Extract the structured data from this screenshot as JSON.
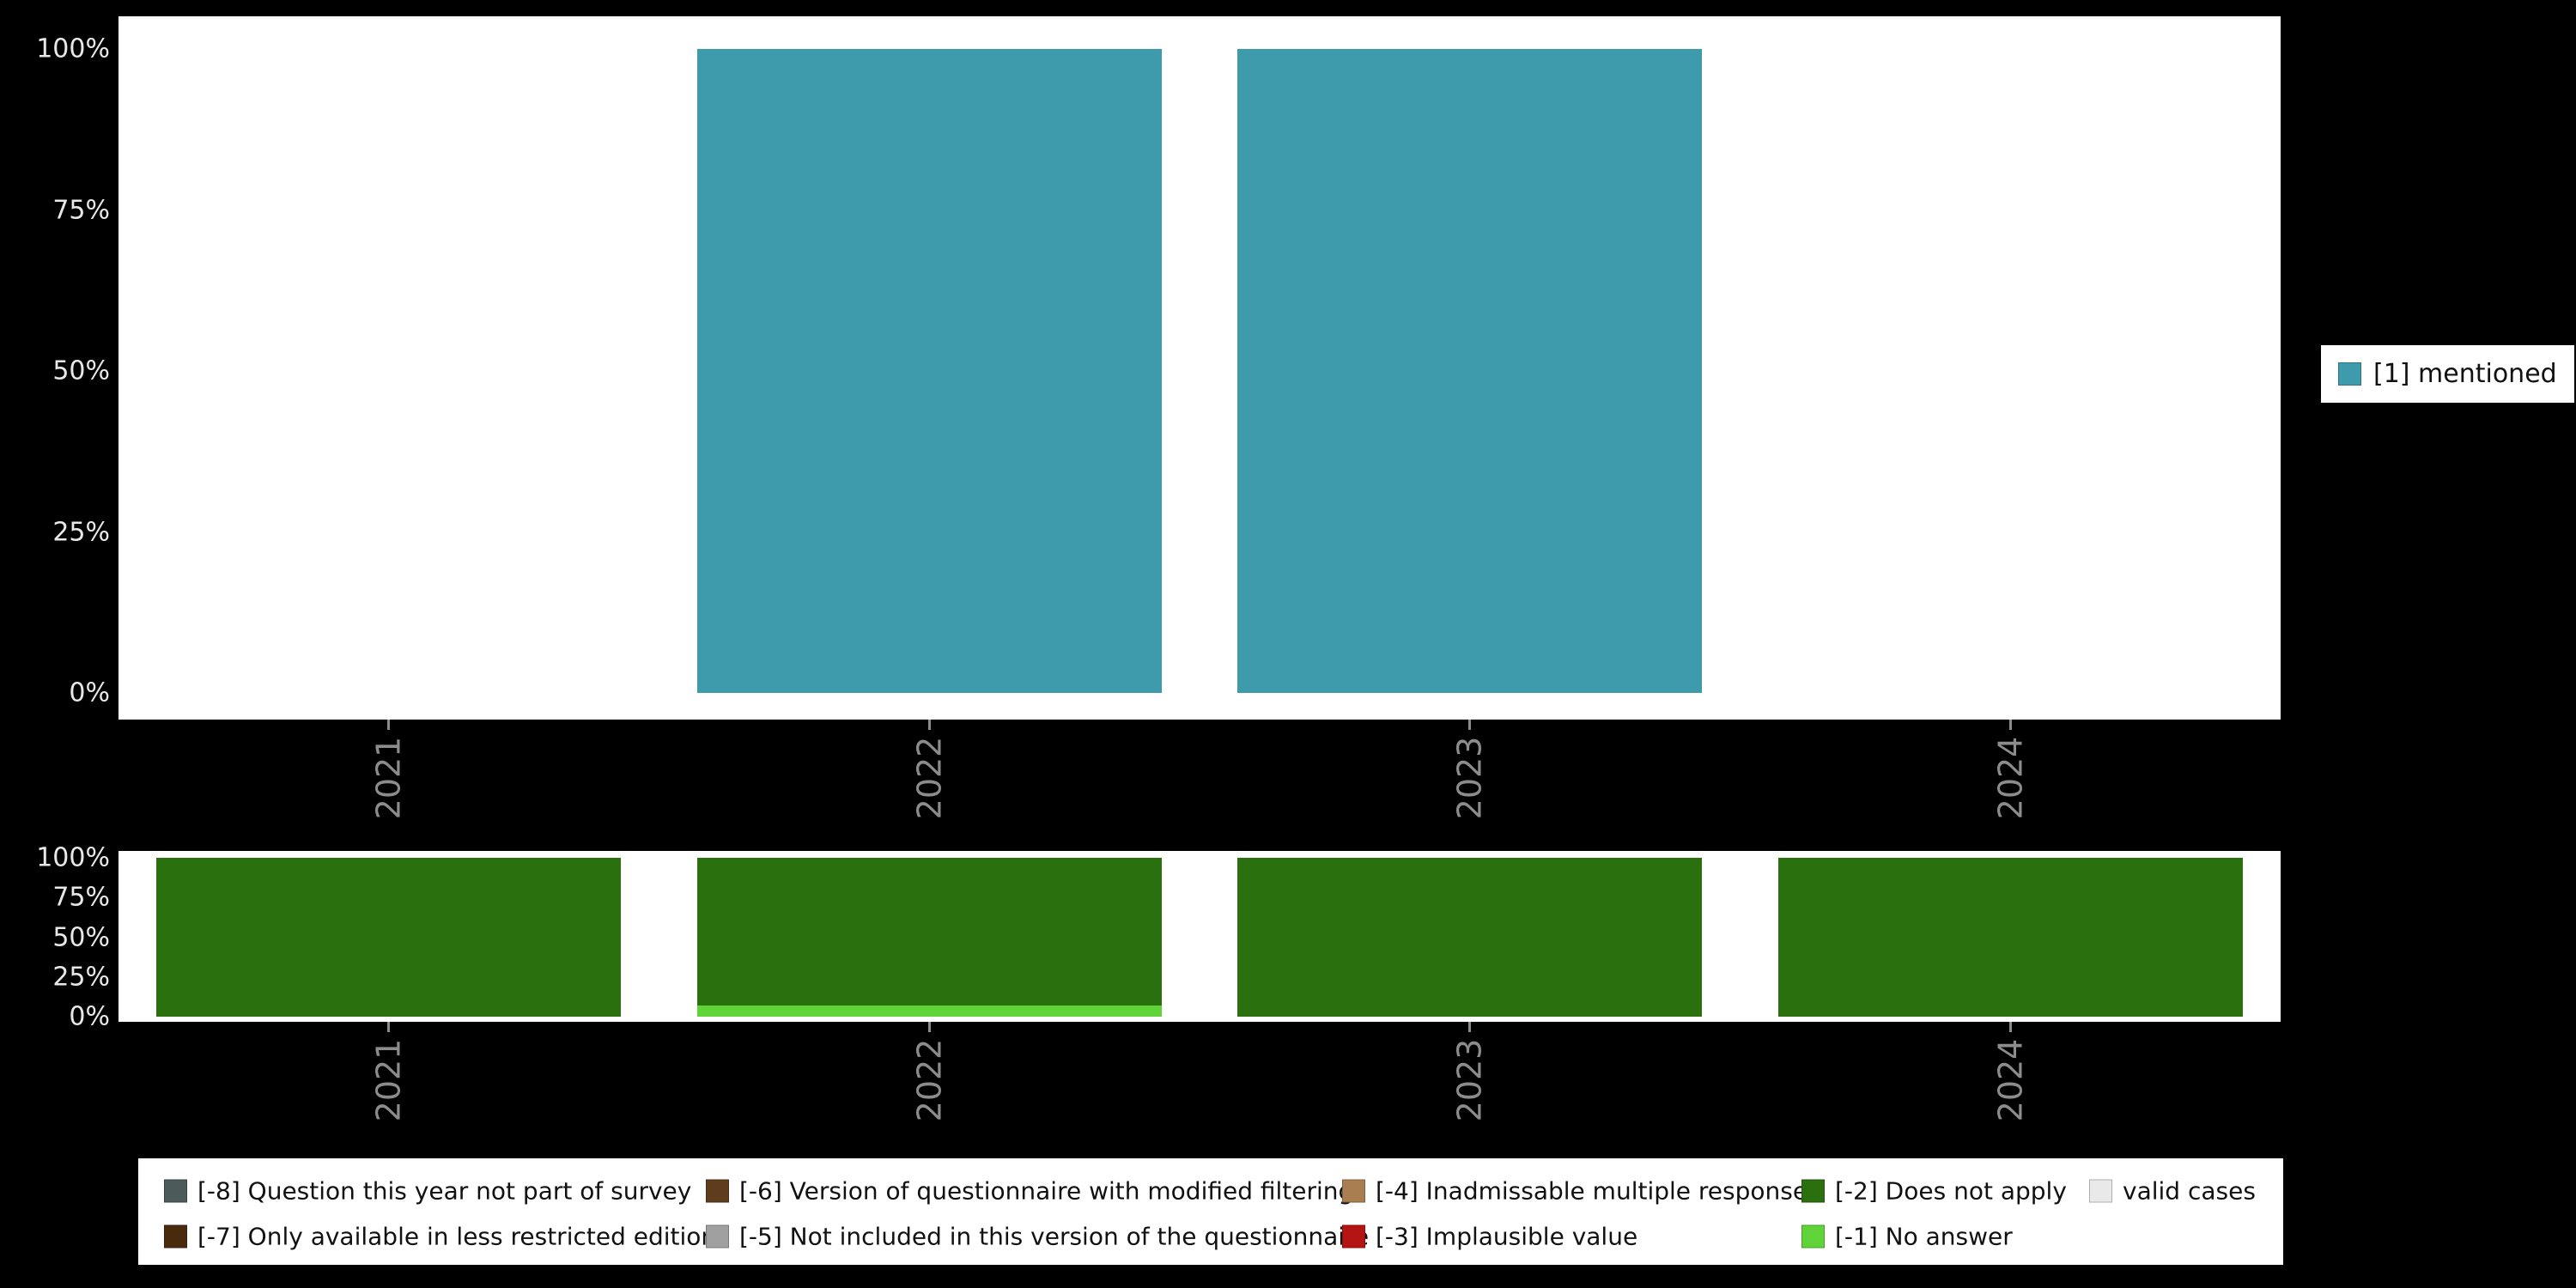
{
  "colors": {
    "background": "#000000",
    "panel_bg": "#ffffff",
    "x_axis_text": "#8c8c8c",
    "y_axis_text": "#e8e8e8",
    "legend_text": "#111111",
    "mentioned": "#3e9bac",
    "does_not_apply": "#2b700f",
    "no_answer": "#5fd338",
    "m8": "#4d5a5a",
    "m7": "#4a2a0c",
    "m6": "#5e3c1c",
    "m5": "#a0a0a0",
    "m4": "#a97f52",
    "m3": "#b51414",
    "valid": "#e9e9e9"
  },
  "right_legend": {
    "items": [
      {
        "label": "[1] mentioned",
        "color_key": "mentioned"
      }
    ]
  },
  "bottom_legend": {
    "rows": [
      [
        {
          "label": "[-8] Question this year not part of survey",
          "color_key": "m8"
        },
        {
          "label": "[-6] Version of questionnaire with modified filtering",
          "color_key": "m6"
        },
        {
          "label": "[-4] Inadmissable multiple response",
          "color_key": "m4"
        },
        {
          "label": "[-2] Does not apply",
          "color_key": "does_not_apply"
        },
        {
          "label": "valid cases",
          "color_key": "valid"
        }
      ],
      [
        {
          "label": "[-7] Only available in less restricted edition",
          "color_key": "m7"
        },
        {
          "label": "[-5] Not included in this version of the questionnaire",
          "color_key": "m5"
        },
        {
          "label": "[-3] Implausible value",
          "color_key": "m3"
        },
        {
          "label": "[-1] No answer",
          "color_key": "no_answer"
        }
      ]
    ]
  },
  "chart_data": [
    {
      "type": "bar",
      "panel": "top",
      "title": "",
      "categories": [
        "2021",
        "2022",
        "2023",
        "2024"
      ],
      "series": [
        {
          "name": "[1] mentioned",
          "color_key": "mentioned",
          "values": [
            0,
            100,
            100,
            0
          ]
        }
      ],
      "yticks": [
        "0%",
        "25%",
        "50%",
        "75%",
        "100%"
      ],
      "ylim": [
        0,
        100
      ],
      "grid": false,
      "legend_position": "right"
    },
    {
      "type": "stacked-bar",
      "panel": "bottom",
      "title": "",
      "categories": [
        "2021",
        "2022",
        "2023",
        "2024"
      ],
      "series": [
        {
          "name": "[-1] No answer",
          "color_key": "no_answer",
          "values": [
            0,
            7,
            0,
            0
          ]
        },
        {
          "name": "[-2] Does not apply",
          "color_key": "does_not_apply",
          "values": [
            100,
            93,
            100,
            100
          ]
        }
      ],
      "yticks": [
        "0%",
        "25%",
        "50%",
        "75%",
        "100%"
      ],
      "ylim": [
        0,
        100
      ],
      "grid": false,
      "legend_position": "bottom"
    }
  ]
}
